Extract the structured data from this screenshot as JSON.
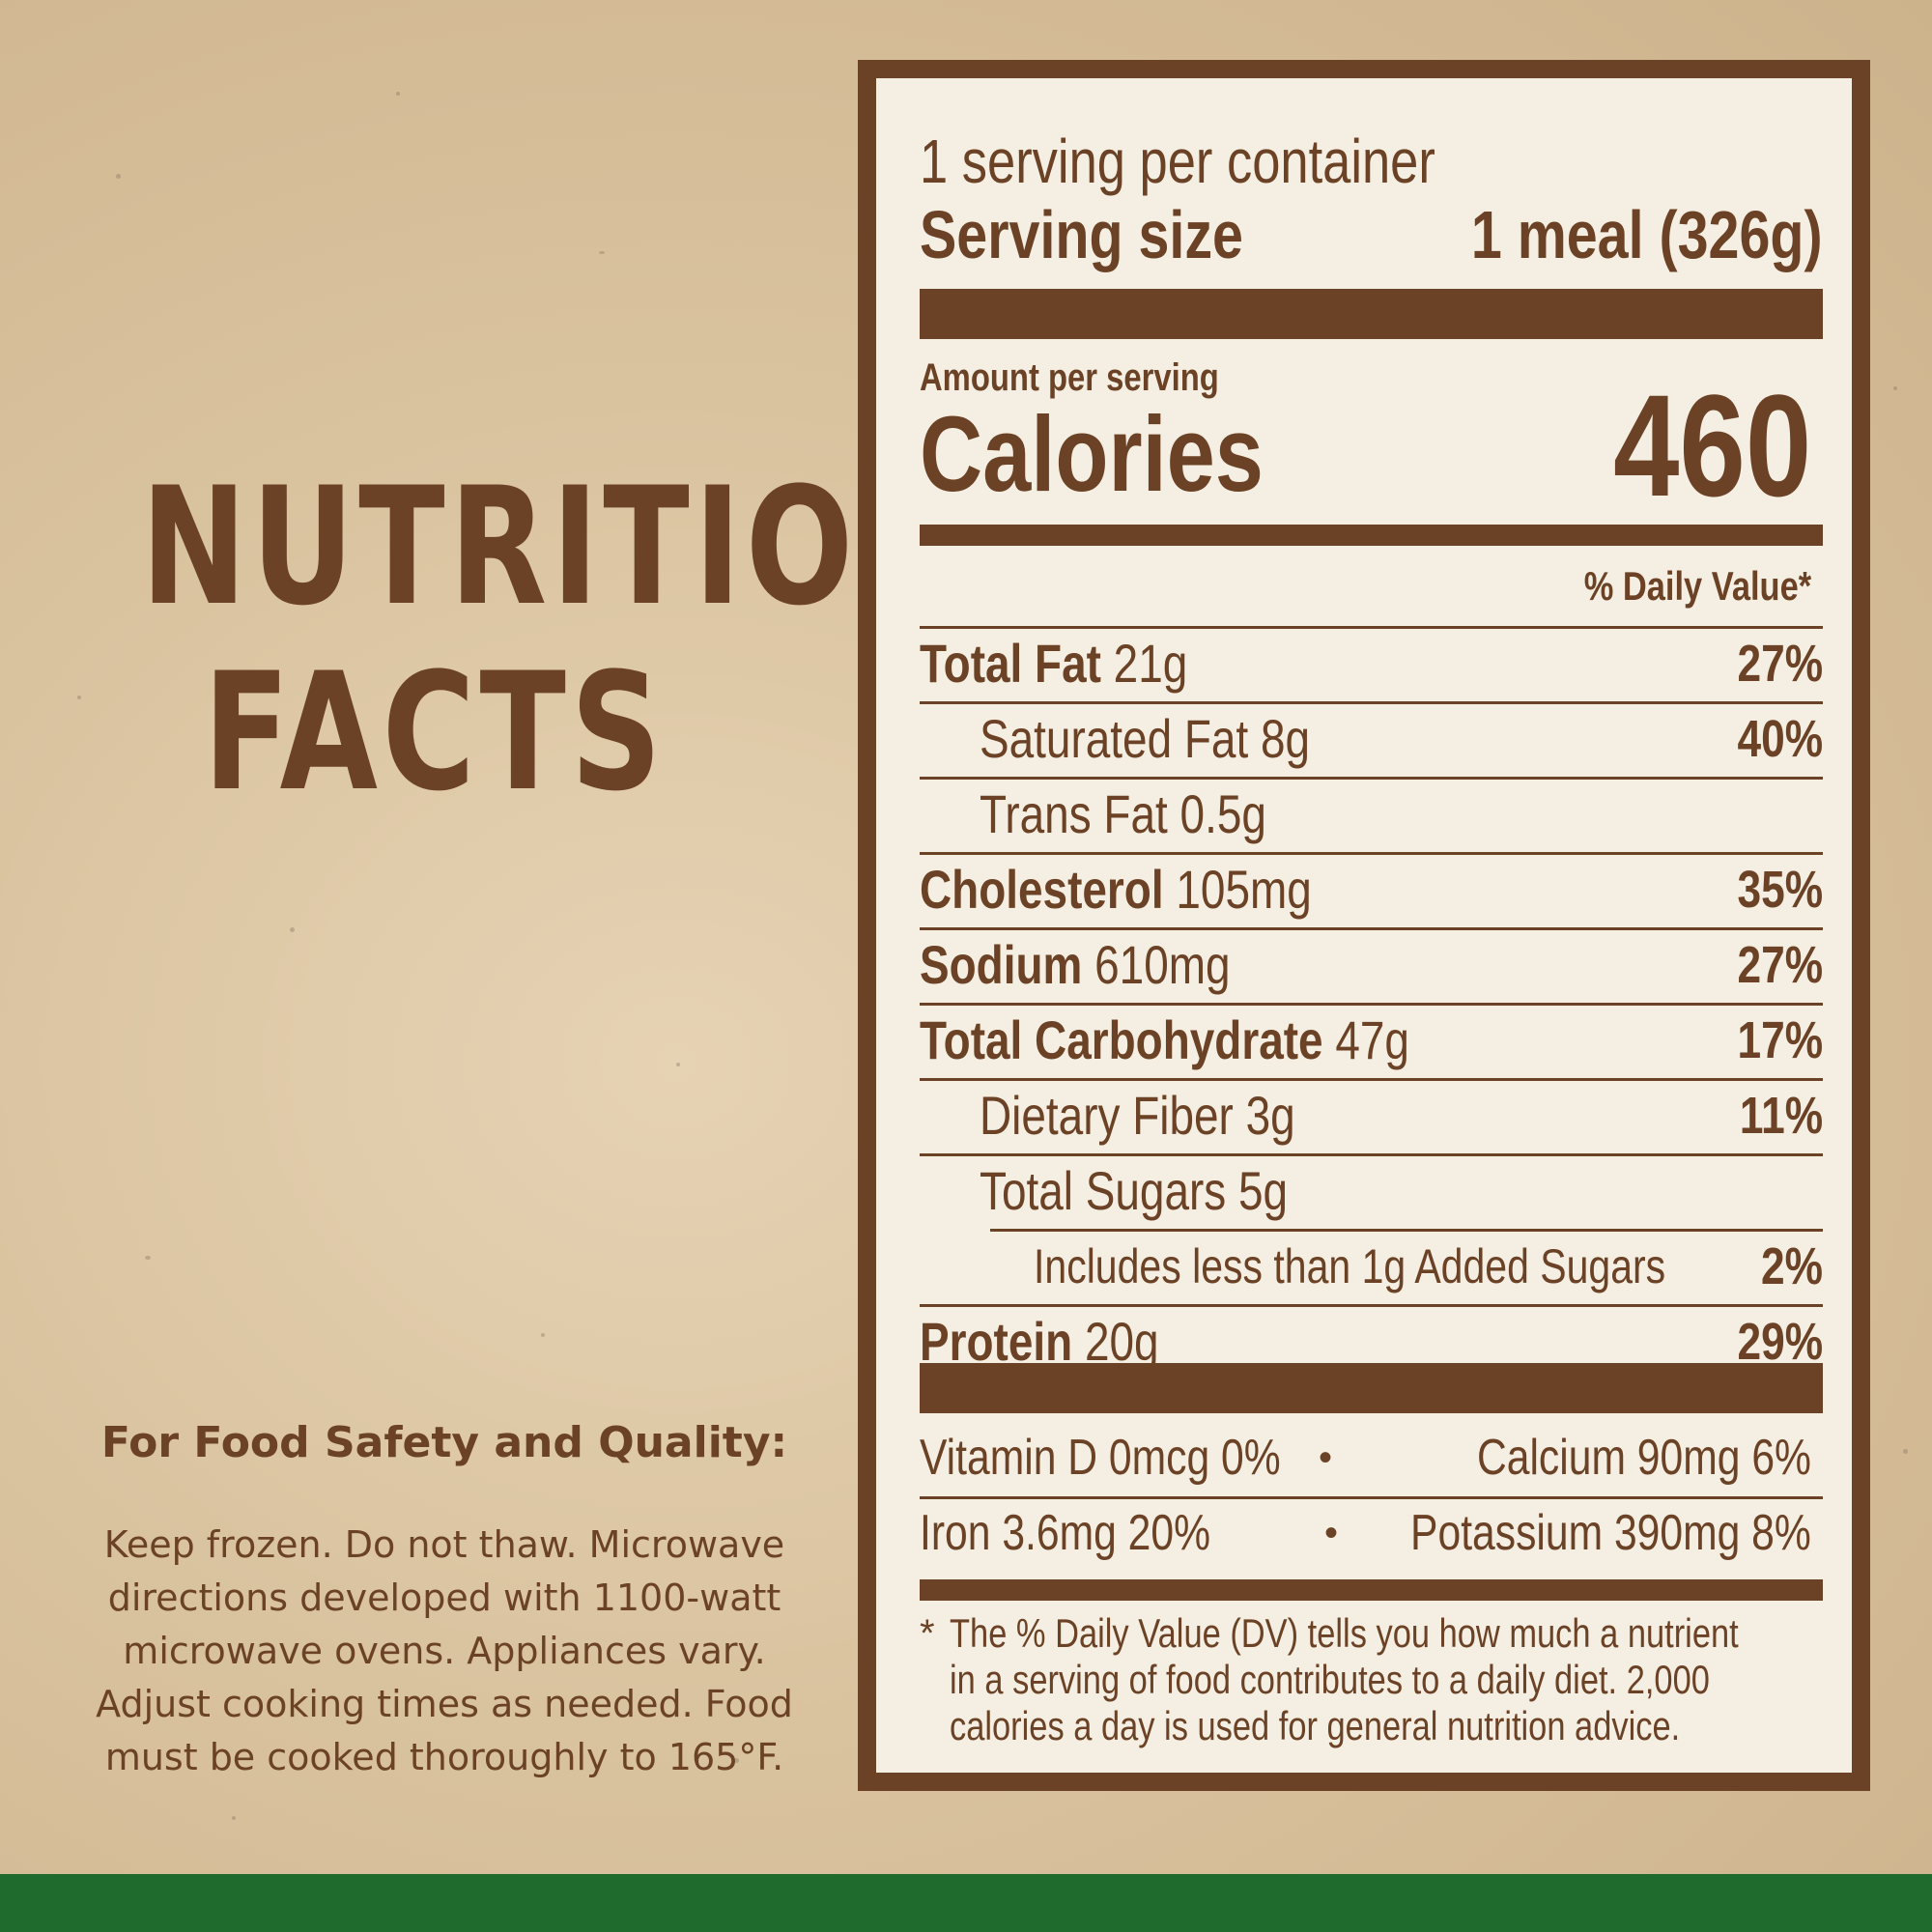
{
  "left": {
    "title_line1": "NUTRITION",
    "title_line2": "FACTS",
    "safety_heading": "For Food Safety and Quality:",
    "safety_lines": [
      "Keep frozen. Do not thaw. Microwave",
      "directions developed with 1100-watt",
      "microwave ovens. Appliances vary.",
      "Adjust cooking times as needed. Food",
      "must be cooked thoroughly to 165°F."
    ]
  },
  "label": {
    "servings_per_container": "1 serving per container",
    "serving_size_label": "Serving size",
    "serving_size_value": "1 meal (326g)",
    "amount_per_serving": "Amount per serving",
    "calories_label": "Calories",
    "calories_value": "460",
    "dv_header": "% Daily Value*",
    "nutrients": [
      {
        "name": "Total Fat",
        "amount": "21g",
        "dv": "27%"
      },
      {
        "name": "Saturated Fat",
        "amount": "8g",
        "dv": "40%"
      },
      {
        "name": "Trans Fat",
        "amount": "0.5g",
        "dv": ""
      },
      {
        "name": "Cholesterol",
        "amount": "105mg",
        "dv": "35%"
      },
      {
        "name": "Sodium",
        "amount": "610mg",
        "dv": "27%"
      },
      {
        "name": "Total Carbohydrate",
        "amount": "47g",
        "dv": "17%"
      },
      {
        "name": "Dietary Fiber",
        "amount": "3g",
        "dv": "11%"
      },
      {
        "name": "Total Sugars",
        "amount": "5g",
        "dv": ""
      },
      {
        "name": "Includes less than 1g Added Sugars",
        "amount": "",
        "dv": "2%"
      },
      {
        "name": "Protein",
        "amount": "20g",
        "dv": "29%"
      }
    ],
    "vitamins": {
      "vitamin_d": "Vitamin D 0mcg 0%",
      "calcium": "Calcium 90mg 6%",
      "iron": "Iron 3.6mg 20%",
      "potassium": "Potassium 390mg 8%",
      "bullet": "•"
    },
    "footnote_star": "*",
    "footnote_lines": [
      "The % Daily Value (DV) tells you how much a nutrient",
      "in a serving of food contributes to a daily diet. 2,000",
      "calories a day is used for general nutrition advice."
    ]
  },
  "colors": {
    "brown": "#6b4226",
    "panel_bg": "#f4efe2",
    "green_band": "#1f6b2e",
    "background": "#d9c29e"
  }
}
